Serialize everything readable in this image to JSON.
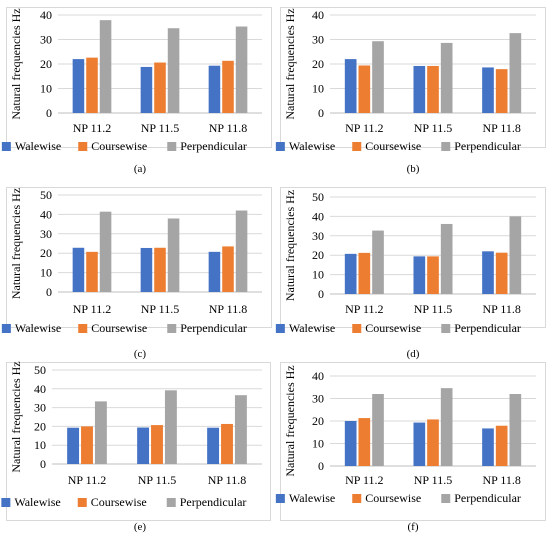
{
  "colors": {
    "Walewise": "#4472C4",
    "Coursewise": "#ED7D31",
    "Perpendicular": "#A5A5A5",
    "grid": "#D9D9D9",
    "axis": "#BFBFBF"
  },
  "chart_data": [
    {
      "type": "bar",
      "panel_label": "(a)",
      "ylabel": "Natural frequencies Hz",
      "categories": [
        "NP 11.2",
        "NP 11.5",
        "NP 11.8"
      ],
      "ylim": [
        0,
        40
      ],
      "yticks": [
        0,
        10,
        20,
        30,
        40
      ],
      "grid": true,
      "legend": "bottom",
      "series": [
        {
          "name": "Walewise",
          "values": [
            22,
            18.8,
            19.3
          ]
        },
        {
          "name": "Coursewise",
          "values": [
            22.6,
            20.6,
            21.3
          ]
        },
        {
          "name": "Perpendicular",
          "values": [
            37.9,
            34.6,
            35.3
          ]
        }
      ]
    },
    {
      "type": "bar",
      "panel_label": "(b)",
      "ylabel": "Natural frequencies Hz",
      "categories": [
        "NP 11.2",
        "NP 11.5",
        "NP 11.8"
      ],
      "ylim": [
        0,
        40
      ],
      "yticks": [
        0,
        10,
        20,
        30,
        40
      ],
      "grid": true,
      "legend": "bottom",
      "series": [
        {
          "name": "Walewise",
          "values": [
            22,
            19.2,
            18.6
          ]
        },
        {
          "name": "Coursewise",
          "values": [
            19.4,
            19.2,
            17.9
          ]
        },
        {
          "name": "Perpendicular",
          "values": [
            29.3,
            28.6,
            32.6
          ]
        }
      ]
    },
    {
      "type": "bar",
      "panel_label": "(c)",
      "ylabel": "Natural frequencies Hz",
      "categories": [
        "NP 11.2",
        "NP 11.5",
        "NP 11.8"
      ],
      "ylim": [
        0,
        50
      ],
      "yticks": [
        0,
        10,
        20,
        30,
        40,
        50
      ],
      "grid": true,
      "legend": "bottom",
      "series": [
        {
          "name": "Walewise",
          "values": [
            22.8,
            22.7,
            20.7
          ]
        },
        {
          "name": "Coursewise",
          "values": [
            20.7,
            22.8,
            23.5
          ]
        },
        {
          "name": "Perpendicular",
          "values": [
            41.4,
            37.9,
            42
          ]
        }
      ]
    },
    {
      "type": "bar",
      "panel_label": "(d)",
      "ylabel": "Natural frequencies Hz",
      "categories": [
        "NP 11.2",
        "NP 11.5",
        "NP 11.8"
      ],
      "ylim": [
        0,
        50
      ],
      "yticks": [
        0,
        10,
        20,
        30,
        40,
        50
      ],
      "grid": true,
      "legend": "bottom",
      "series": [
        {
          "name": "Walewise",
          "values": [
            20.7,
            19.4,
            22
          ]
        },
        {
          "name": "Coursewise",
          "values": [
            21.2,
            19.4,
            21.3
          ]
        },
        {
          "name": "Perpendicular",
          "values": [
            32.7,
            36.1,
            40
          ]
        }
      ]
    },
    {
      "type": "bar",
      "panel_label": "(e)",
      "ylabel": "Natural frequencies Hz",
      "categories": [
        "NP 11.2",
        "NP 11.5",
        "NP 11.8"
      ],
      "ylim": [
        0,
        50
      ],
      "yticks": [
        0,
        10,
        20,
        30,
        40,
        50
      ],
      "grid": true,
      "legend": "bottom",
      "series": [
        {
          "name": "Walewise",
          "values": [
            19.3,
            19.4,
            19.3
          ]
        },
        {
          "name": "Coursewise",
          "values": [
            20,
            20.7,
            21.3
          ]
        },
        {
          "name": "Perpendicular",
          "values": [
            33.3,
            39.2,
            36.6
          ]
        }
      ]
    },
    {
      "type": "bar",
      "panel_label": "(f)",
      "ylabel": "Natural frequencies Hz",
      "categories": [
        "NP 11.2",
        "NP 11.5",
        "NP 11.8"
      ],
      "ylim": [
        0,
        40
      ],
      "yticks": [
        0,
        10,
        20,
        30,
        40
      ],
      "grid": true,
      "legend": "bottom",
      "series": [
        {
          "name": "Walewise",
          "values": [
            20,
            19.3,
            16.7
          ]
        },
        {
          "name": "Coursewise",
          "values": [
            21.3,
            20.7,
            17.9
          ]
        },
        {
          "name": "Perpendicular",
          "values": [
            32,
            34.6,
            32
          ]
        }
      ]
    }
  ]
}
